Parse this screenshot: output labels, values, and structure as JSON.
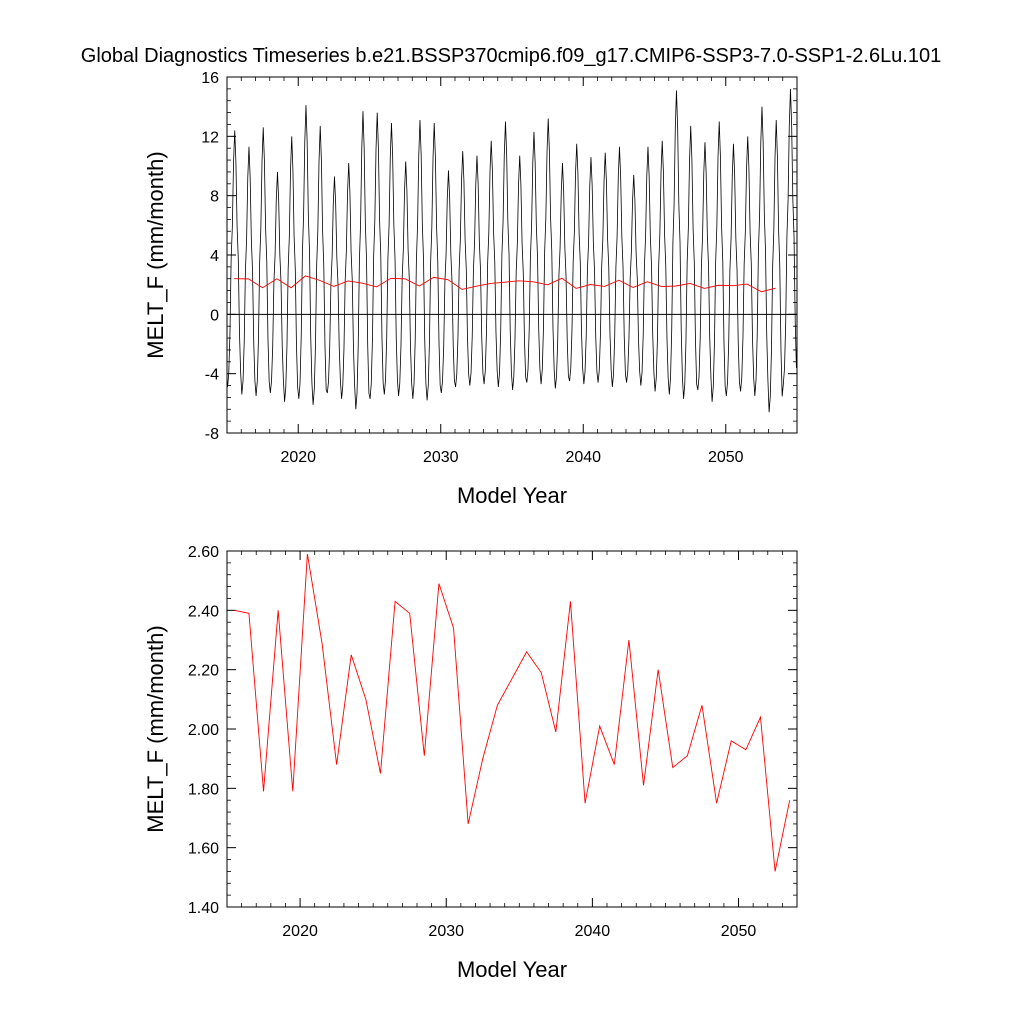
{
  "title": "Global Diagnostics Timeseries b.e21.BSSP370cmip6.f09_g17.CMIP6-SSP3-7.0-SSP1-2.6Lu.101",
  "chart_data": [
    {
      "type": "line",
      "name": "monthly",
      "xlabel": "Model Year",
      "ylabel": "MELT_F (mm/month)",
      "xlim": [
        2015,
        2055
      ],
      "ylim": [
        -8,
        16
      ],
      "xticks": [
        2020,
        2030,
        2040,
        2050
      ],
      "yticks": [
        -8,
        -4,
        0,
        4,
        8,
        12,
        16
      ],
      "ytick_labels": [
        "-8",
        "-4",
        "0",
        "4",
        "8",
        "12",
        "16"
      ],
      "zero_line": true,
      "series": [
        {
          "role": "monthly",
          "color": "#000000",
          "monthly_peaks": [
            12.4,
            11.3,
            12.6,
            9.6,
            12.0,
            14.1,
            12.7,
            9.3,
            10.2,
            13.7,
            13.6,
            12.9,
            10.3,
            13.1,
            12.9,
            9.7,
            11.0,
            10.7,
            11.7,
            13.0,
            10.7,
            12.3,
            13.2,
            10.2,
            11.5,
            10.6,
            10.9,
            11.3,
            9.4,
            11.3,
            11.7,
            15.1,
            12.7,
            11.6,
            13.0,
            11.5,
            12.0,
            14.0,
            13.1,
            15.2
          ],
          "monthly_troughs": [
            -4.9,
            -5.4,
            -5.5,
            -5.3,
            -5.9,
            -5.7,
            -6.1,
            -5.3,
            -5.7,
            -6.4,
            -5.7,
            -5.4,
            -5.5,
            -5.7,
            -5.8,
            -5.3,
            -4.9,
            -4.8,
            -4.7,
            -4.9,
            -5.1,
            -4.6,
            -4.7,
            -5.0,
            -4.5,
            -4.7,
            -4.6,
            -4.9,
            -4.6,
            -4.8,
            -5.2,
            -5.4,
            -5.7,
            -5.1,
            -5.9,
            -5.5,
            -5.2,
            -5.5,
            -6.6,
            -4.7
          ]
        },
        {
          "role": "annual-mean",
          "color": "#ff0000",
          "x": [
            2015.5,
            2016.5,
            2017.5,
            2018.5,
            2019.5,
            2020.5,
            2021.5,
            2022.5,
            2023.5,
            2024.5,
            2025.5,
            2026.5,
            2027.5,
            2028.5,
            2029.5,
            2030.5,
            2031.5,
            2032.5,
            2033.5,
            2034.5,
            2035.5,
            2036.5,
            2037.5,
            2038.5,
            2039.5,
            2040.5,
            2041.5,
            2042.5,
            2043.5,
            2044.5,
            2045.5,
            2046.5,
            2047.5,
            2048.5,
            2049.5,
            2050.5,
            2051.5,
            2052.5,
            2053.5
          ],
          "y": [
            2.4,
            2.39,
            1.79,
            2.4,
            1.79,
            2.59,
            2.29,
            1.88,
            2.25,
            2.1,
            1.85,
            2.43,
            2.39,
            1.91,
            2.49,
            2.34,
            1.68,
            1.9,
            2.08,
            2.17,
            2.26,
            2.19,
            1.99,
            2.43,
            1.75,
            2.01,
            1.88,
            2.3,
            1.81,
            2.2,
            1.87,
            1.91,
            2.08,
            1.75,
            1.96,
            1.93,
            2.04,
            1.52,
            1.76
          ]
        }
      ]
    },
    {
      "type": "line",
      "name": "annual",
      "xlabel": "Model Year",
      "ylabel": "MELT_F (mm/month)",
      "xlim": [
        2015,
        2054
      ],
      "ylim": [
        1.4,
        2.6
      ],
      "xticks": [
        2020,
        2030,
        2040,
        2050
      ],
      "yticks": [
        1.4,
        1.6,
        1.8,
        2.0,
        2.2,
        2.4,
        2.6
      ],
      "ytick_labels": [
        "1.40",
        "1.60",
        "1.80",
        "2.00",
        "2.20",
        "2.40",
        "2.60"
      ],
      "series": [
        {
          "role": "annual-mean",
          "color": "#ff0000",
          "x": [
            2015.5,
            2016.5,
            2017.5,
            2018.5,
            2019.5,
            2020.5,
            2021.5,
            2022.5,
            2023.5,
            2024.5,
            2025.5,
            2026.5,
            2027.5,
            2028.5,
            2029.5,
            2030.5,
            2031.5,
            2032.5,
            2033.5,
            2034.5,
            2035.5,
            2036.5,
            2037.5,
            2038.5,
            2039.5,
            2040.5,
            2041.5,
            2042.5,
            2043.5,
            2044.5,
            2045.5,
            2046.5,
            2047.5,
            2048.5,
            2049.5,
            2050.5,
            2051.5,
            2052.5,
            2053.5
          ],
          "y": [
            2.4,
            2.39,
            1.79,
            2.4,
            1.79,
            2.59,
            2.29,
            1.88,
            2.25,
            2.1,
            1.85,
            2.43,
            2.39,
            1.91,
            2.49,
            2.34,
            1.68,
            1.9,
            2.08,
            2.17,
            2.26,
            2.19,
            1.99,
            2.43,
            1.75,
            2.01,
            1.88,
            2.3,
            1.81,
            2.2,
            1.87,
            1.91,
            2.08,
            1.75,
            1.96,
            1.93,
            2.04,
            1.52,
            1.76
          ]
        }
      ]
    }
  ]
}
